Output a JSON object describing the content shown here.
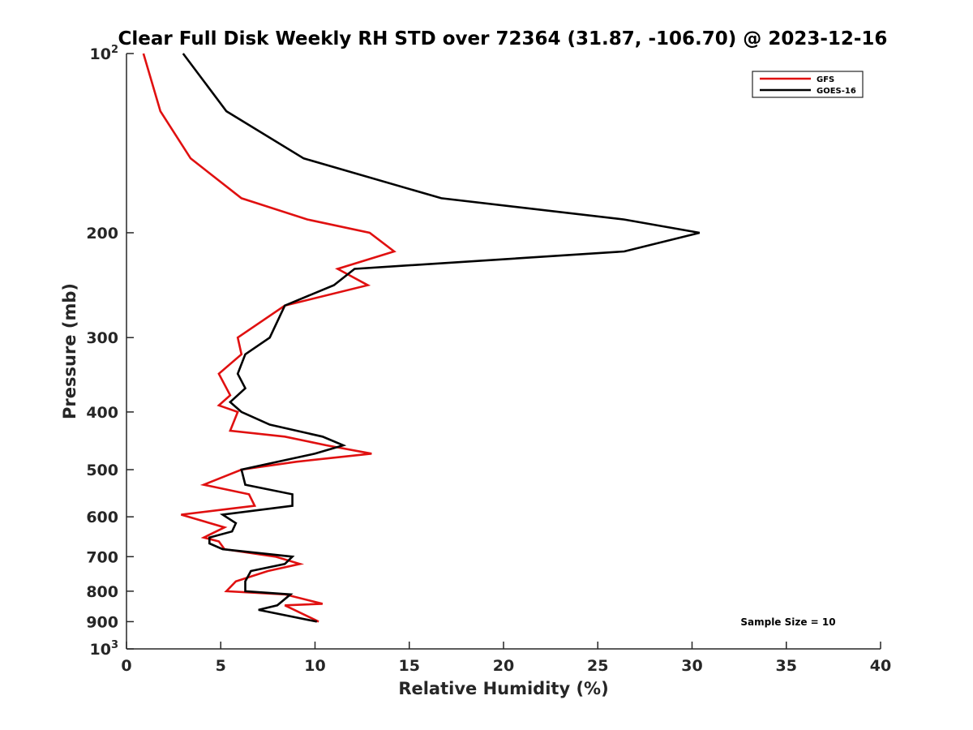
{
  "chart_data": {
    "type": "line",
    "title": "Clear Full Disk Weekly RH STD over 72364 (31.87, -106.70) @ 2023-12-16",
    "xlabel": "Relative Humidity (%)",
    "ylabel": "Pressure (mb)",
    "xlim": [
      0,
      40
    ],
    "ylim": [
      100,
      1000
    ],
    "y_scale": "log",
    "y_reversed": true,
    "x_ticks": [
      "0",
      "5",
      "10",
      "15",
      "20",
      "25",
      "30",
      "35",
      "40"
    ],
    "y_ticks": [
      {
        "value": 100,
        "base": "10",
        "exp": "2"
      },
      {
        "value": 200,
        "label": "200"
      },
      {
        "value": 300,
        "label": "300"
      },
      {
        "value": 400,
        "label": "400"
      },
      {
        "value": 500,
        "label": "500"
      },
      {
        "value": 600,
        "label": "600"
      },
      {
        "value": 700,
        "label": "700"
      },
      {
        "value": 800,
        "label": "800"
      },
      {
        "value": 900,
        "label": "900"
      },
      {
        "value": 1000,
        "base": "10",
        "exp": "3"
      }
    ],
    "grid": false,
    "legend_position": "top-right",
    "annotation": "Sample Size = 10",
    "series": [
      {
        "name": "GFS",
        "color": "#e01010",
        "points": [
          [
            0.9,
            100
          ],
          [
            1.8,
            125
          ],
          [
            3.4,
            150
          ],
          [
            6.1,
            175
          ],
          [
            9.6,
            190
          ],
          [
            12.9,
            200
          ],
          [
            14.2,
            215
          ],
          [
            11.2,
            230
          ],
          [
            12.8,
            245
          ],
          [
            8.4,
            265
          ],
          [
            5.9,
            300
          ],
          [
            6.1,
            320
          ],
          [
            4.9,
            345
          ],
          [
            5.5,
            375
          ],
          [
            4.9,
            390
          ],
          [
            5.9,
            400
          ],
          [
            5.5,
            430
          ],
          [
            8.4,
            440
          ],
          [
            10.6,
            455
          ],
          [
            13.0,
            470
          ],
          [
            9.0,
            485
          ],
          [
            6.1,
            500
          ],
          [
            4.1,
            530
          ],
          [
            6.5,
            550
          ],
          [
            6.8,
            575
          ],
          [
            2.9,
            595
          ],
          [
            5.2,
            625
          ],
          [
            4.1,
            650
          ],
          [
            4.9,
            660
          ],
          [
            5.2,
            680
          ],
          [
            7.9,
            700
          ],
          [
            9.2,
            720
          ],
          [
            7.5,
            740
          ],
          [
            5.8,
            770
          ],
          [
            5.3,
            800
          ],
          [
            8.4,
            810
          ],
          [
            10.4,
            840
          ],
          [
            8.4,
            845
          ],
          [
            10.2,
            900
          ]
        ]
      },
      {
        "name": "GOES-16",
        "color": "#000000",
        "points": [
          [
            3.0,
            100
          ],
          [
            5.3,
            125
          ],
          [
            9.4,
            150
          ],
          [
            16.7,
            175
          ],
          [
            26.4,
            190
          ],
          [
            30.4,
            200
          ],
          [
            26.4,
            215
          ],
          [
            12.1,
            230
          ],
          [
            11.0,
            245
          ],
          [
            8.4,
            265
          ],
          [
            7.6,
            300
          ],
          [
            6.3,
            320
          ],
          [
            5.9,
            345
          ],
          [
            6.3,
            365
          ],
          [
            5.5,
            385
          ],
          [
            6.1,
            400
          ],
          [
            7.6,
            420
          ],
          [
            10.4,
            440
          ],
          [
            11.5,
            455
          ],
          [
            10.0,
            470
          ],
          [
            6.1,
            500
          ],
          [
            6.3,
            530
          ],
          [
            8.8,
            550
          ],
          [
            8.8,
            575
          ],
          [
            5.1,
            595
          ],
          [
            5.8,
            615
          ],
          [
            5.6,
            635
          ],
          [
            4.4,
            650
          ],
          [
            4.4,
            665
          ],
          [
            5.1,
            680
          ],
          [
            8.8,
            700
          ],
          [
            8.4,
            720
          ],
          [
            6.6,
            740
          ],
          [
            6.3,
            770
          ],
          [
            6.3,
            800
          ],
          [
            8.7,
            810
          ],
          [
            8.0,
            845
          ],
          [
            7.0,
            860
          ],
          [
            10.1,
            900
          ]
        ]
      }
    ]
  }
}
